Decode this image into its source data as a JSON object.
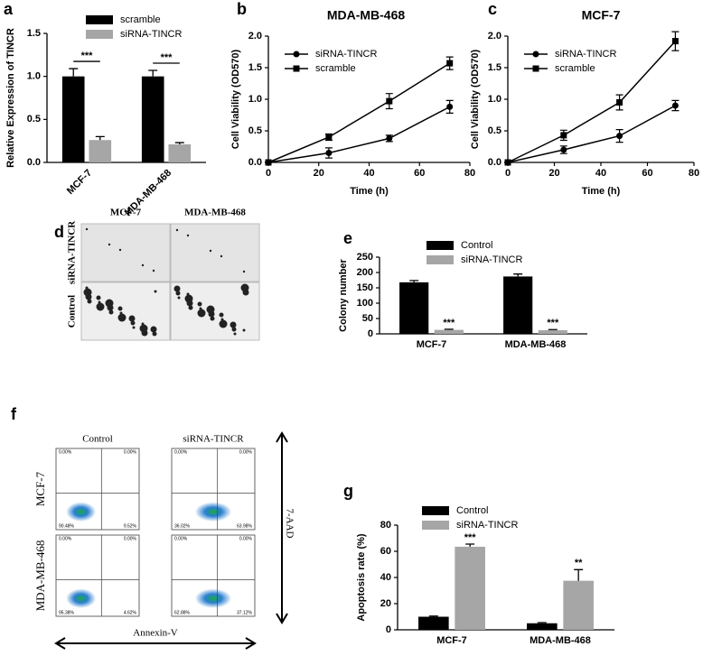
{
  "chart_data": [
    {
      "type": "bar",
      "panel": "a",
      "y_label": "Relative Expression of TINCR",
      "categories": [
        "MCF-7",
        "MDA-MB-468"
      ],
      "series": [
        {
          "name": "scramble",
          "color": "#000000",
          "values": [
            1.0,
            1.0
          ],
          "errors": [
            0.09,
            0.07
          ]
        },
        {
          "name": "siRNA-TINCR",
          "color": "#a6a6a6",
          "values": [
            0.26,
            0.21
          ],
          "errors": [
            0.04,
            0.02
          ]
        }
      ],
      "annotations": [
        "***",
        "***"
      ],
      "ylim": [
        0,
        1.5
      ],
      "yticks": [
        {
          "value": 0,
          "label": "0.0"
        },
        {
          "value": 0.5,
          "label": "0.5"
        },
        {
          "value": 1,
          "label": "1.0"
        },
        {
          "value": 1.5,
          "label": "1.5"
        }
      ]
    },
    {
      "type": "line",
      "panel": "b",
      "title": "MDA-MB-468",
      "x_label": "Time (h)",
      "y_label": "Cell Viability (OD570)",
      "x": [
        0,
        24,
        48,
        72
      ],
      "series": [
        {
          "name": "siRNA-TINCR",
          "color": "#000000",
          "marker": "circle",
          "values": [
            0,
            0.15,
            0.38,
            0.88
          ],
          "errors": [
            0,
            0.08,
            0.05,
            0.1
          ]
        },
        {
          "name": "scramble",
          "color": "#000000",
          "marker": "square",
          "values": [
            0,
            0.4,
            0.97,
            1.57
          ],
          "errors": [
            0,
            0.05,
            0.12,
            0.1
          ]
        }
      ],
      "xlim": [
        0,
        80
      ],
      "xticks": [
        0,
        20,
        40,
        60,
        80
      ],
      "ylim": [
        0,
        2
      ],
      "yticks": [
        {
          "value": 0,
          "label": "0.0"
        },
        {
          "value": 0.5,
          "label": "0.5"
        },
        {
          "value": 1,
          "label": "1.0"
        },
        {
          "value": 1.5,
          "label": "1.5"
        },
        {
          "value": 2,
          "label": "2.0"
        }
      ]
    },
    {
      "type": "line",
      "panel": "c",
      "title": "MCF-7",
      "x_label": "Time (h)",
      "y_label": "Cell Viability (OD570)",
      "x": [
        0,
        24,
        48,
        72
      ],
      "series": [
        {
          "name": "siRNA-TINCR",
          "color": "#000000",
          "marker": "circle",
          "values": [
            0,
            0.2,
            0.42,
            0.9
          ],
          "errors": [
            0,
            0.06,
            0.1,
            0.08
          ]
        },
        {
          "name": "scramble",
          "color": "#000000",
          "marker": "square",
          "values": [
            0,
            0.43,
            0.95,
            1.92
          ],
          "errors": [
            0,
            0.08,
            0.12,
            0.15
          ]
        }
      ],
      "xlim": [
        0,
        80
      ],
      "xticks": [
        0,
        20,
        40,
        60,
        80
      ],
      "ylim": [
        0,
        2
      ],
      "yticks": [
        {
          "value": 0,
          "label": "0.0"
        },
        {
          "value": 0.5,
          "label": "0.5"
        },
        {
          "value": 1,
          "label": "1.0"
        },
        {
          "value": 1.5,
          "label": "1.5"
        },
        {
          "value": 2,
          "label": "2.0"
        }
      ]
    },
    {
      "type": "bar",
      "panel": "e",
      "y_label": "Colony number",
      "categories": [
        "MCF-7",
        "MDA-MB-468"
      ],
      "series": [
        {
          "name": "Control",
          "color": "#000000",
          "values": [
            168,
            187
          ],
          "errors": [
            6,
            8
          ]
        },
        {
          "name": "siRNA-TINCR",
          "color": "#a6a6a6",
          "values": [
            13,
            12
          ],
          "errors": [
            2,
            2
          ]
        }
      ],
      "annotations": [
        "***",
        "***"
      ],
      "ylim": [
        0,
        250
      ],
      "yticks": [
        0,
        50,
        100,
        150,
        200,
        250
      ]
    },
    {
      "type": "bar",
      "panel": "g",
      "y_label": "Apoptosis rate (%)",
      "categories": [
        "MCF-7",
        "MDA-MB-468"
      ],
      "series": [
        {
          "name": "Control",
          "color": "#000000",
          "values": [
            10,
            5
          ],
          "errors": [
            0.5,
            0.5
          ]
        },
        {
          "name": "siRNA-TINCR",
          "color": "#a6a6a6",
          "values": [
            63.5,
            37.5
          ],
          "errors": [
            2,
            8.5
          ]
        }
      ],
      "annotations": [
        "***",
        "**"
      ],
      "ylim": [
        0,
        80
      ],
      "yticks": [
        0,
        20,
        40,
        60,
        80
      ]
    }
  ],
  "images": {
    "d": {
      "panel": "d",
      "columns": [
        "MCF-7",
        "MDA-MB-468"
      ],
      "rows": [
        "siRNA-TINCR",
        "Control"
      ]
    },
    "f": {
      "panel": "f",
      "columns": [
        "Control",
        "siRNA-TINCR"
      ],
      "rows": [
        "MCF-7",
        "MDA-MB-468"
      ],
      "y_axis": "7-AAD",
      "x_axis": "Annexin-V",
      "quadrants": [
        [
          [
            "0.00%",
            "0.00%",
            "90.48%",
            "9.52%"
          ],
          [
            "0.00%",
            "0.00%",
            "36.02%",
            "63.98%"
          ]
        ],
        [
          [
            "0.00%",
            "0.00%",
            "95.38%",
            "4.62%"
          ],
          [
            "0.00%",
            "0.00%",
            "62.88%",
            "37.12%"
          ]
        ]
      ]
    }
  }
}
